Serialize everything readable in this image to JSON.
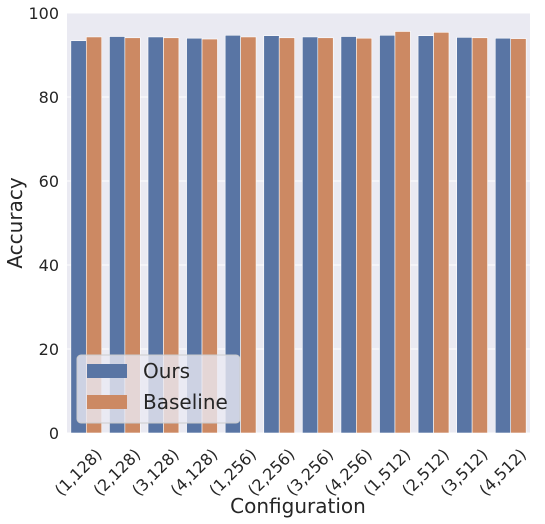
{
  "chart_data": {
    "type": "bar",
    "title": "",
    "xlabel": "Configuration",
    "ylabel": "Accuracy",
    "ylim": [
      0,
      100
    ],
    "yticks": [
      0,
      20,
      40,
      60,
      80,
      100
    ],
    "grid": true,
    "legend_position": "bottom-left",
    "categories": [
      "(1,128)",
      "(2,128)",
      "(3,128)",
      "(4,128)",
      "(1,256)",
      "(2,256)",
      "(3,256)",
      "(4,256)",
      "(1,512)",
      "(2,512)",
      "(3,512)",
      "(4,512)"
    ],
    "series": [
      {
        "name": "Ours",
        "color": "#5975a4",
        "values": [
          93.4,
          94.4,
          94.3,
          94.0,
          94.7,
          94.6,
          94.3,
          94.4,
          94.7,
          94.6,
          94.2,
          94.0
        ]
      },
      {
        "name": "Baseline",
        "color": "#cc8963",
        "values": [
          94.3,
          94.1,
          94.1,
          93.8,
          94.3,
          94.1,
          94.1,
          94.0,
          95.6,
          95.4,
          94.1,
          93.9
        ]
      }
    ]
  }
}
